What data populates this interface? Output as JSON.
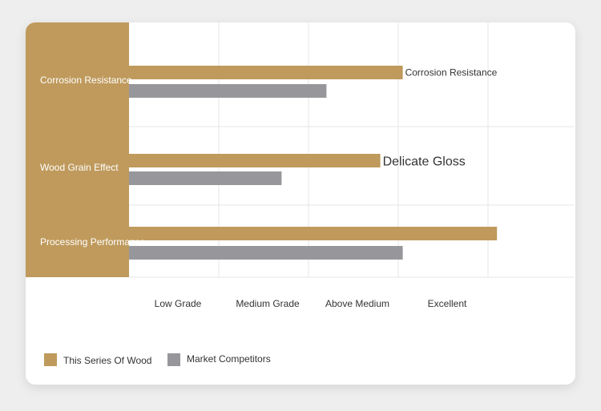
{
  "colors": {
    "brand": "#bf9a5c",
    "competitor": "#97979b",
    "grid": "#e6e6e6",
    "text": "#333333"
  },
  "chart_data": {
    "type": "bar",
    "orientation": "horizontal",
    "categories": [
      "Corrosion Resistance",
      "Wood Grain Effect",
      "Processing Performance"
    ],
    "x_ticks": [
      "Low Grade",
      "Medium Grade",
      "Above Medium",
      "Excellent"
    ],
    "xlim": [
      0,
      4
    ],
    "series": [
      {
        "name": "This Series Of Wood",
        "values": [
          3.05,
          2.8,
          4.1
        ],
        "color": "#bf9a5c"
      },
      {
        "name": "Market Competitors",
        "values": [
          2.2,
          1.7,
          3.05
        ],
        "color": "#97979b"
      }
    ],
    "annotations": [
      {
        "category_index": 0,
        "text": "Corrosion Resistance"
      },
      {
        "category_index": 1,
        "text": "Delicate Gloss"
      }
    ],
    "grid": true,
    "legend_position": "bottom-left"
  },
  "legend": {
    "brand_label": "This Series Of Wood",
    "competitor_label": "Market Competitors"
  }
}
